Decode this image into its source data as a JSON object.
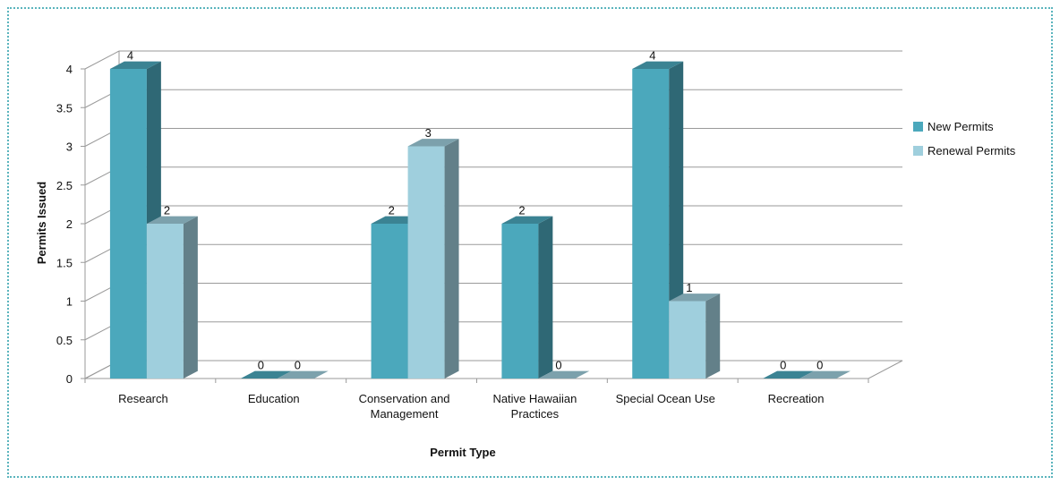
{
  "chart_data": {
    "type": "bar",
    "style": "3d-clustered-column",
    "title": "",
    "xlabel": "Permit Type",
    "ylabel": "Permits Issued",
    "categories": [
      [
        "Research"
      ],
      [
        "Education"
      ],
      [
        "Conservation and",
        "Management"
      ],
      [
        "Native Hawaiian",
        "Practices"
      ],
      [
        "Special Ocean Use"
      ],
      [
        "Recreation"
      ]
    ],
    "series": [
      {
        "name": "New Permits",
        "values": [
          4,
          0,
          2,
          2,
          4,
          0
        ],
        "color": "#4ba8bc"
      },
      {
        "name": "Renewal Permits",
        "values": [
          2,
          0,
          3,
          0,
          1,
          0
        ],
        "color": "#9fcfdd"
      }
    ],
    "ylim": [
      0,
      4
    ],
    "yticks": [
      "0",
      "0.5",
      "1",
      "1.5",
      "2",
      "2.5",
      "3",
      "3.5",
      "4"
    ],
    "grid": true,
    "legend_position": "right",
    "data_labels": true
  }
}
